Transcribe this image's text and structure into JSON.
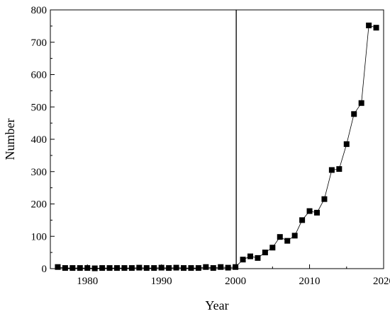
{
  "chart_data": {
    "type": "line",
    "title": "",
    "xlabel": "Year",
    "ylabel": "Number",
    "xlim": [
      1975,
      2020
    ],
    "ylim": [
      0,
      800
    ],
    "x_ticks": [
      1980,
      1990,
      2000,
      2010,
      2020
    ],
    "y_ticks": [
      0,
      100,
      200,
      300,
      400,
      500,
      600,
      700,
      800
    ],
    "grid": false,
    "legend": "none",
    "marker": "square",
    "reference_line_x": 2000.1,
    "series": [
      {
        "x": [
          1976,
          1977,
          1978,
          1979,
          1980,
          1981,
          1982,
          1983,
          1984,
          1985,
          1986,
          1987,
          1988,
          1989,
          1990,
          1991,
          1992,
          1993,
          1994,
          1995,
          1996,
          1997,
          1998,
          1999,
          2000,
          2001,
          2002,
          2003,
          2004,
          2005,
          2006,
          2007,
          2008,
          2009,
          2010,
          2011,
          2012,
          2013,
          2014,
          2015,
          2016,
          2017,
          2018,
          2019
        ],
        "y": [
          5,
          2,
          2,
          2,
          2,
          1,
          2,
          2,
          2,
          2,
          2,
          3,
          2,
          2,
          3,
          2,
          3,
          2,
          2,
          2,
          5,
          2,
          5,
          3,
          5,
          28,
          38,
          33,
          50,
          65,
          98,
          86,
          102,
          150,
          178,
          173,
          215,
          305,
          308,
          385,
          478,
          512,
          752,
          745
        ]
      }
    ],
    "colors": {
      "marker": "#000000",
      "line": "#000000",
      "axis": "#000000"
    }
  }
}
